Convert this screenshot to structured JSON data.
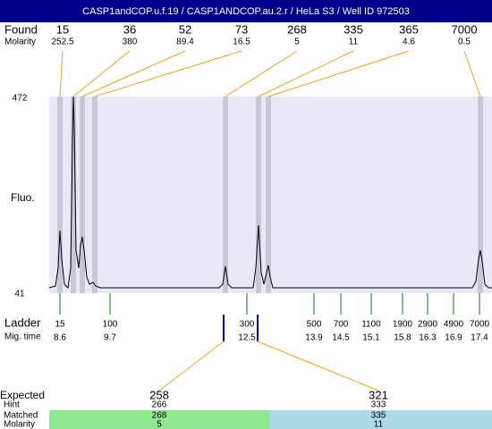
{
  "header": {
    "title": "CASP1andCOP.u.f.19 / CASP1ANDCOP.au.2.r / HeLa S3 / Well ID 972503"
  },
  "found": {
    "label": "Found",
    "molarity_label": "Molarity",
    "peaks": [
      {
        "size": 15,
        "molarity": 252.5
      },
      {
        "size": 36,
        "molarity": 380
      },
      {
        "size": 52,
        "molarity": 89.4
      },
      {
        "size": 73,
        "molarity": 16.5
      },
      {
        "size": 268,
        "molarity": 5
      },
      {
        "size": 335,
        "molarity": 11
      },
      {
        "size": 365,
        "molarity": 4.6
      },
      {
        "size": 7000,
        "molarity": 0.5
      }
    ]
  },
  "fluo": {
    "label": "Fluo.",
    "max": 472,
    "min": 41
  },
  "ladder": {
    "label": "Ladder",
    "time_label": "Mig. time",
    "peaks": [
      {
        "size": 15,
        "time": 8.6
      },
      {
        "size": 100,
        "time": 9.7
      },
      {
        "size": 300,
        "time": 12.5
      },
      {
        "size": 500,
        "time": 13.9
      },
      {
        "size": 700,
        "time": 14.5
      },
      {
        "size": 1100,
        "time": 15.1
      },
      {
        "size": 1900,
        "time": 15.8
      },
      {
        "size": 2900,
        "time": 16.3
      },
      {
        "size": 4900,
        "time": 16.9
      },
      {
        "size": 7000,
        "time": 17.4
      }
    ]
  },
  "expected": {
    "label": "Expected",
    "hint_label": "Hint",
    "matched_label": "Matched",
    "molarity_label": "Molarity",
    "items": [
      {
        "expected": 258,
        "hint": 266,
        "matched": 268,
        "molarity": 5
      },
      {
        "expected": 321,
        "hint": 333,
        "matched": 335,
        "molarity": 11
      }
    ]
  }
}
